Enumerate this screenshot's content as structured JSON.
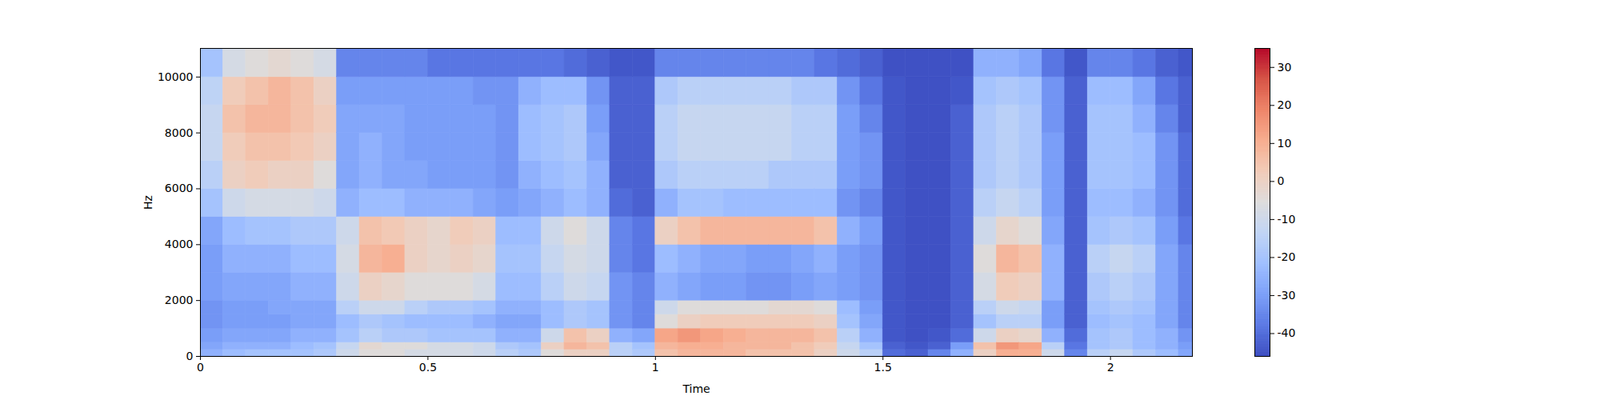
{
  "chart_data": {
    "type": "heatmap",
    "xlabel": "Time",
    "ylabel": "Hz",
    "xlim": [
      0,
      2.18
    ],
    "ylim": [
      0,
      11025
    ],
    "xticks": [
      0,
      0.5,
      1,
      1.5,
      2
    ],
    "yticks": [
      0,
      2000,
      4000,
      6000,
      8000,
      10000
    ],
    "x_edges": [
      0,
      0.05,
      0.1,
      0.15,
      0.2,
      0.25,
      0.3,
      0.35,
      0.4,
      0.45,
      0.5,
      0.55,
      0.6,
      0.65,
      0.7,
      0.75,
      0.8,
      0.85,
      0.9,
      0.95,
      1,
      1.05,
      1.1,
      1.15,
      1.2,
      1.25,
      1.3,
      1.35,
      1.4,
      1.45,
      1.5,
      1.55,
      1.6,
      1.65,
      1.7,
      1.75,
      1.8,
      1.85,
      1.9,
      1.95,
      2,
      2.05,
      2.1,
      2.15,
      2.18
    ],
    "y_edges": [
      0,
      250,
      500,
      1000,
      1500,
      2000,
      3000,
      4000,
      5000,
      6000,
      7000,
      8000,
      9000,
      10000,
      11025
    ],
    "values": [
      [
        -25,
        -28,
        -30,
        -32,
        -32,
        -30,
        -30,
        -28,
        -20,
        -15,
        -12,
        -12,
        -14,
        -20
      ],
      [
        -22,
        -25,
        -28,
        -30,
        -30,
        -28,
        -25,
        -22,
        -10,
        0,
        2,
        5,
        2,
        -8
      ],
      [
        -20,
        -25,
        -28,
        -30,
        -30,
        -28,
        -25,
        -20,
        -8,
        2,
        5,
        8,
        5,
        -5
      ],
      [
        -20,
        -25,
        -28,
        -30,
        -28,
        -28,
        -25,
        -20,
        -8,
        0,
        5,
        8,
        8,
        -3
      ],
      [
        -20,
        -22,
        -25,
        -28,
        -28,
        -25,
        -22,
        -18,
        -8,
        0,
        3,
        5,
        5,
        -5
      ],
      [
        -18,
        -20,
        -25,
        -28,
        -28,
        -25,
        -22,
        -18,
        -10,
        -5,
        0,
        2,
        0,
        -8
      ],
      [
        -10,
        -12,
        -20,
        -22,
        -15,
        -10,
        -8,
        -10,
        -25,
        -28,
        -28,
        -28,
        -30,
        -35
      ],
      [
        -5,
        -3,
        -15,
        -18,
        -10,
        0,
        8,
        5,
        -22,
        -25,
        -25,
        -28,
        -30,
        -35
      ],
      [
        -5,
        -5,
        -18,
        -20,
        -10,
        -2,
        10,
        3,
        -22,
        -28,
        -28,
        -28,
        -30,
        -35
      ],
      [
        -8,
        -5,
        -18,
        -22,
        -15,
        -5,
        0,
        0,
        -25,
        -28,
        -30,
        -30,
        -30,
        -35
      ],
      [
        -8,
        -8,
        -20,
        -22,
        -18,
        -5,
        -2,
        -2,
        -25,
        -30,
        -30,
        -30,
        -30,
        -38
      ],
      [
        -8,
        -8,
        -20,
        -22,
        -18,
        -5,
        0,
        2,
        -25,
        -30,
        -30,
        -30,
        -30,
        -38
      ],
      [
        -10,
        -10,
        -20,
        -25,
        -20,
        -8,
        -2,
        0,
        -28,
        -30,
        -30,
        -30,
        -32,
        -38
      ],
      [
        -15,
        -18,
        -25,
        -28,
        -25,
        -22,
        -20,
        -22,
        -30,
        -32,
        -32,
        -32,
        -32,
        -38
      ],
      [
        -18,
        -20,
        -25,
        -28,
        -25,
        -22,
        -20,
        -22,
        -28,
        -25,
        -22,
        -22,
        -25,
        -38
      ],
      [
        -5,
        0,
        -10,
        -22,
        -22,
        -15,
        -12,
        -10,
        -25,
        -22,
        -20,
        -20,
        -22,
        -38
      ],
      [
        0,
        8,
        5,
        -18,
        -18,
        -10,
        -8,
        -5,
        -22,
        -20,
        -18,
        -18,
        -22,
        -40
      ],
      [
        0,
        5,
        0,
        -20,
        -20,
        -12,
        -10,
        -10,
        -25,
        -25,
        -28,
        -30,
        -32,
        -42
      ],
      [
        -15,
        -15,
        -25,
        -32,
        -32,
        -32,
        -35,
        -35,
        -40,
        -42,
        -42,
        -42,
        -42,
        -44
      ],
      [
        -18,
        -20,
        -28,
        -35,
        -35,
        -35,
        -38,
        -38,
        -42,
        -42,
        -42,
        -42,
        -42,
        -44
      ],
      [
        5,
        8,
        12,
        -5,
        -10,
        -25,
        -22,
        0,
        -25,
        -18,
        -15,
        -15,
        -18,
        -35
      ],
      [
        8,
        10,
        15,
        0,
        -5,
        -28,
        -25,
        5,
        -20,
        -15,
        -12,
        -12,
        -15,
        -35
      ],
      [
        8,
        10,
        12,
        2,
        -5,
        -30,
        -28,
        8,
        -20,
        -15,
        -12,
        -12,
        -15,
        -35
      ],
      [
        8,
        8,
        10,
        2,
        -5,
        -30,
        -28,
        8,
        -22,
        -15,
        -12,
        -12,
        -15,
        -35
      ],
      [
        5,
        8,
        8,
        2,
        -5,
        -32,
        -30,
        8,
        -22,
        -15,
        -12,
        -12,
        -15,
        -35
      ],
      [
        5,
        8,
        8,
        2,
        -3,
        -32,
        -30,
        8,
        -22,
        -18,
        -12,
        -12,
        -15,
        -35
      ],
      [
        5,
        5,
        8,
        2,
        -3,
        -30,
        -28,
        8,
        -22,
        -18,
        -15,
        -15,
        -18,
        -35
      ],
      [
        0,
        2,
        5,
        0,
        -5,
        -28,
        -25,
        5,
        -22,
        -18,
        -15,
        -15,
        -18,
        -38
      ],
      [
        -10,
        -12,
        -15,
        -20,
        -22,
        -30,
        -30,
        -25,
        -32,
        -30,
        -30,
        -30,
        -32,
        -40
      ],
      [
        -15,
        -20,
        -25,
        -28,
        -30,
        -32,
        -32,
        -30,
        -35,
        -32,
        -32,
        -35,
        -38,
        -42
      ],
      [
        -40,
        -42,
        -44,
        -44,
        -44,
        -44,
        -44,
        -44,
        -44,
        -44,
        -44,
        -44,
        -44,
        -45
      ],
      [
        -42,
        -44,
        -45,
        -45,
        -45,
        -45,
        -45,
        -45,
        -45,
        -45,
        -45,
        -45,
        -45,
        -45
      ],
      [
        -35,
        -42,
        -44,
        -45,
        -45,
        -45,
        -45,
        -45,
        -45,
        -45,
        -45,
        -45,
        -45,
        -45
      ],
      [
        -25,
        -30,
        -40,
        -42,
        -42,
        -42,
        -42,
        -42,
        -42,
        -42,
        -42,
        -42,
        -44,
        -45
      ],
      [
        0,
        5,
        -10,
        -20,
        -15,
        -8,
        -5,
        -10,
        -15,
        -18,
        -18,
        -18,
        -20,
        -25
      ],
      [
        10,
        15,
        0,
        -15,
        -10,
        2,
        8,
        -2,
        -12,
        -15,
        -15,
        -15,
        -18,
        -25
      ],
      [
        10,
        12,
        -2,
        -15,
        -12,
        0,
        5,
        -5,
        -15,
        -18,
        -18,
        -18,
        -20,
        -28
      ],
      [
        -10,
        -15,
        -25,
        -30,
        -30,
        -25,
        -25,
        -28,
        -30,
        -30,
        -30,
        -32,
        -32,
        -38
      ],
      [
        -35,
        -38,
        -40,
        -42,
        -42,
        -42,
        -42,
        -42,
        -42,
        -42,
        -42,
        -42,
        -42,
        -44
      ],
      [
        -15,
        -20,
        -20,
        -22,
        -20,
        -18,
        -15,
        -20,
        -22,
        -20,
        -20,
        -20,
        -22,
        -35
      ],
      [
        -12,
        -18,
        -18,
        -20,
        -18,
        -15,
        -12,
        -18,
        -22,
        -20,
        -20,
        -20,
        -22,
        -35
      ],
      [
        -18,
        -22,
        -22,
        -22,
        -20,
        -18,
        -15,
        -20,
        -25,
        -22,
        -22,
        -25,
        -28,
        -38
      ],
      [
        -22,
        -25,
        -25,
        -28,
        -28,
        -28,
        -28,
        -30,
        -32,
        -32,
        -32,
        -35,
        -38,
        -42
      ],
      [
        -28,
        -30,
        -32,
        -35,
        -35,
        -35,
        -35,
        -38,
        -40,
        -40,
        -40,
        -42,
        -42,
        -44
      ]
    ],
    "colorbar": {
      "range": [
        -46,
        35
      ],
      "ticks": [
        -40,
        -30,
        -20,
        -10,
        0,
        10,
        20,
        30
      ]
    }
  }
}
